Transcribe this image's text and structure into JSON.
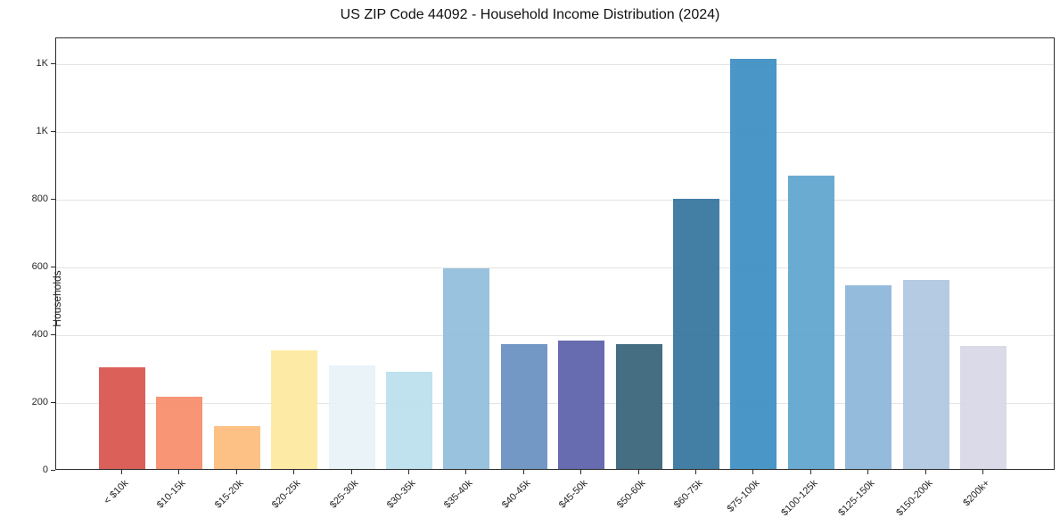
{
  "chart_data": {
    "type": "bar",
    "title": "US ZIP Code 44092 - Household Income Distribution (2024)",
    "xlabel": "",
    "ylabel": "Households",
    "categories": [
      "< $10k",
      "$10-15k",
      "$15-20k",
      "$20-25k",
      "$25-30k",
      "$30-35k",
      "$35-40k",
      "$40-45k",
      "$45-50k",
      "$50-60k",
      "$60-75k",
      "$75-100k",
      "$100-125k",
      "$125-150k",
      "$150-200k",
      "$200k+"
    ],
    "values": [
      300,
      214,
      126,
      350,
      305,
      288,
      592,
      368,
      379,
      368,
      798,
      1210,
      866,
      543,
      557,
      362
    ],
    "bar_colors": [
      "#d8544e",
      "#f68d6b",
      "#fdbc7d",
      "#fde89e",
      "#e7f2f7",
      "#bae0ed",
      "#90bddc",
      "#6890c1",
      "#5b60aa",
      "#37637a",
      "#35759d",
      "#3c8ec2",
      "#5fa5ce",
      "#8db6d9",
      "#afc7e1",
      "#d7d7e6"
    ],
    "ylim": [
      0,
      1276
    ],
    "yticks": {
      "values": [
        0,
        200,
        400,
        600,
        800,
        1000,
        1200
      ],
      "labels": [
        "0",
        "200",
        "400",
        "600",
        "800",
        "1K",
        "1K"
      ]
    },
    "grid": "horizontal",
    "legend": "none",
    "background_color": "#ffffff",
    "axis_color": "#2b2b2b"
  }
}
